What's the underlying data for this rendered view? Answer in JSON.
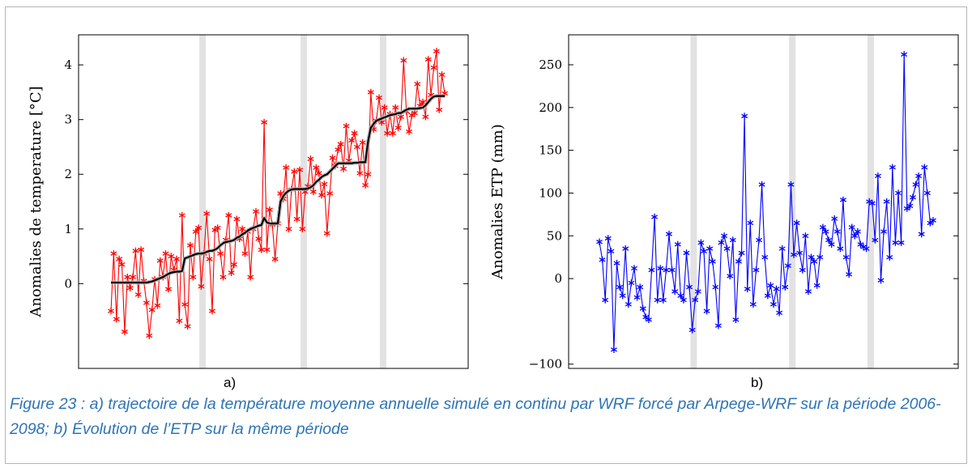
{
  "chart_data": [
    {
      "type": "line",
      "panel_label": "a)",
      "title": "",
      "xlabel": "",
      "ylabel": "Anomalies de temperature [°C]",
      "ylim": [
        -1.55,
        4.55
      ],
      "yticks": [
        0,
        1,
        2,
        3,
        4
      ],
      "series": [
        {
          "name": "",
          "color": "#ff0000",
          "marker": "star",
          "values": [
            -0.5,
            0.55,
            -0.65,
            0.45,
            0.35,
            -0.88,
            0.12,
            -0.08,
            0.12,
            0.6,
            -0.2,
            0.62,
            0.05,
            -0.35,
            -0.95,
            -0.48,
            0.08,
            -0.4,
            0.42,
            0.12,
            0.55,
            -0.1,
            0.5,
            0.25,
            0.45,
            -0.68,
            1.25,
            -0.38,
            -0.78,
            0.7,
            0.12,
            0.95,
            1.02,
            -0.05,
            0.55,
            1.28,
            0.45,
            -0.5,
            0.98,
            1.02,
            0.55,
            0.12,
            0.8,
            1.25,
            0.2,
            0.35,
            1.18,
            0.82,
            1.0,
            0.55,
            0.95,
            0.12,
            1.0,
            1.32,
            0.82,
            0.62,
            2.95,
            0.62,
            1.35,
            1.08,
            0.45,
            1.1,
            1.65,
            1.55,
            2.12,
            1.0,
            1.72,
            2.05,
            1.18,
            2.08,
            1.0,
            1.68,
            1.78,
            2.28,
            1.68,
            2.12,
            2.02,
            1.62,
            1.82,
            0.92,
            1.65,
            2.3,
            2.15,
            2.45,
            2.55,
            2.1,
            2.88,
            2.25,
            2.62,
            2.75,
            2.5,
            2.02,
            2.58,
            1.8,
            2.0,
            3.5,
            2.82,
            2.98,
            3.4,
            2.95,
            3.22,
            2.75,
            3.1,
            2.75,
            3.22,
            2.85,
            3.05,
            4.08,
            3.15,
            2.78,
            3.08,
            3.12,
            3.65,
            3.25,
            3.32,
            3.05,
            4.1,
            3.45,
            3.95,
            4.25,
            3.18,
            3.82,
            3.48
          ]
        },
        {
          "name": "",
          "color": "#000000",
          "role": "mean trajectory",
          "values": [
            0.02,
            0.02,
            0.02,
            0.02,
            0.02,
            0.02,
            0.02,
            0.02,
            0.02,
            0.02,
            0.02,
            0.02,
            0.02,
            0.02,
            0.03,
            0.04,
            0.06,
            0.08,
            0.1,
            0.12,
            0.15,
            0.18,
            0.2,
            0.21,
            0.22,
            0.22,
            0.23,
            0.46,
            0.48,
            0.5,
            0.52,
            0.54,
            0.55,
            0.55,
            0.56,
            0.58,
            0.6,
            0.6,
            0.62,
            0.65,
            0.7,
            0.74,
            0.76,
            0.77,
            0.78,
            0.8,
            0.84,
            0.86,
            0.9,
            0.93,
            0.97,
            1.0,
            1.02,
            1.04,
            1.06,
            1.07,
            1.2,
            1.12,
            1.1,
            1.1,
            1.1,
            1.1,
            1.5,
            1.6,
            1.66,
            1.7,
            1.72,
            1.73,
            1.73,
            1.73,
            1.73,
            1.73,
            1.74,
            1.76,
            1.8,
            1.86,
            1.9,
            1.95,
            1.98,
            2.0,
            2.05,
            2.1,
            2.15,
            2.2,
            2.2,
            2.2,
            2.2,
            2.2,
            2.2,
            2.21,
            2.21,
            2.22,
            2.22,
            2.22,
            2.6,
            2.85,
            2.92,
            2.98,
            3.0,
            3.02,
            3.04,
            3.06,
            3.08,
            3.09,
            3.1,
            3.12,
            3.12,
            3.15,
            3.18,
            3.2,
            3.2,
            3.2,
            3.2,
            3.21,
            3.22,
            3.26,
            3.32,
            3.38,
            3.42,
            3.43,
            3.43,
            3.43,
            3.43
          ]
        }
      ],
      "shaded_index": [
        33.5,
        70.5,
        99.5
      ],
      "grid": false
    },
    {
      "type": "line",
      "panel_label": "b)",
      "title": "",
      "xlabel": "",
      "ylabel": "Anomalies ETP (mm)",
      "ylim": [
        -105,
        285
      ],
      "yticks": [
        -100,
        0,
        50,
        100,
        150,
        200,
        250
      ],
      "series": [
        {
          "name": "",
          "color": "#0000ff",
          "marker": "star",
          "values": [
            43,
            22,
            -25,
            47,
            32,
            -83,
            18,
            -10,
            -20,
            35,
            -30,
            -5,
            12,
            -22,
            -10,
            -35,
            -45,
            -48,
            10,
            72,
            -25,
            12,
            -25,
            10,
            52,
            10,
            -15,
            40,
            -20,
            -25,
            30,
            -10,
            -60,
            -25,
            -15,
            42,
            32,
            -38,
            35,
            20,
            -10,
            -55,
            42,
            50,
            35,
            3,
            45,
            -48,
            20,
            30,
            190,
            -12,
            65,
            -30,
            10,
            45,
            110,
            25,
            -20,
            -8,
            -30,
            -12,
            -40,
            35,
            -10,
            15,
            110,
            28,
            65,
            30,
            10,
            50,
            -15,
            25,
            20,
            -8,
            25,
            60,
            55,
            45,
            40,
            70,
            55,
            35,
            92,
            25,
            5,
            60,
            50,
            55,
            40,
            37,
            35,
            90,
            88,
            45,
            120,
            -2,
            55,
            90,
            25,
            130,
            42,
            100,
            42,
            262,
            82,
            85,
            95,
            110,
            120,
            52,
            130,
            100,
            65,
            68
          ]
        }
      ],
      "shaded_index": [
        32.5,
        66.5,
        93.5
      ],
      "grid": false
    }
  ],
  "caption": "Figure 23 : a) trajectoire de la température moyenne annuelle simulé en continu par WRF forcé par Arpege-WRF sur la période 2006-2098; b) Évolution de l’ETP sur la même période"
}
